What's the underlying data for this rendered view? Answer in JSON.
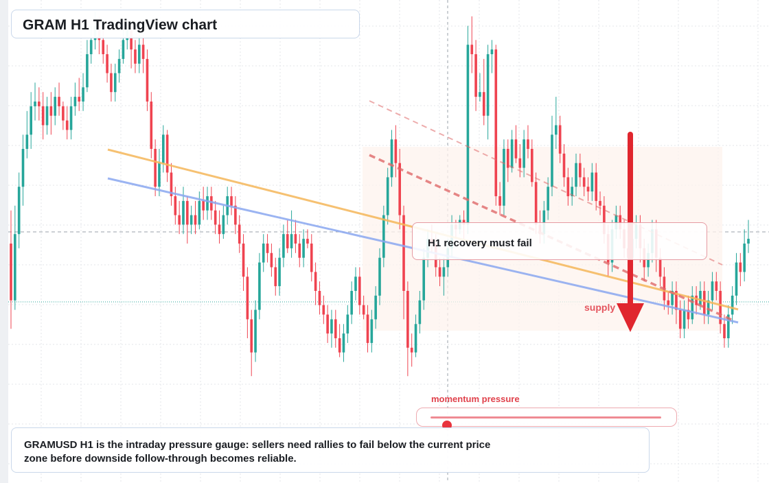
{
  "header": {
    "title": "GRAM H1 TradingView chart"
  },
  "callout": {
    "text": "H1 recovery must fail"
  },
  "annotations": {
    "supply_label": "supply"
  },
  "momentum": {
    "label": "momentum pressure",
    "value_fraction": 0.07
  },
  "footer": {
    "text": "GRAMUSD H1 is the intraday pressure gauge: sellers need rallies to fail below the current price zone before downside follow-through becomes reliable."
  },
  "colors": {
    "bull": "#26a69a",
    "bear": "#ef4350",
    "trendline_orange": "#f5b75a",
    "trendline_blue": "#8aa8f0",
    "resistance_dashed": "#e06a6a",
    "arrow": "#e0262e",
    "supply_zone": "#fdf3ee"
  },
  "chart_data": {
    "type": "candlestick",
    "symbol": "GRAMUSD",
    "timeframe": "H1",
    "grid": true,
    "price_scale_visible": false,
    "y_range_relative": [
      0,
      100
    ],
    "candles": [
      [
        50,
        38,
        57,
        32
      ],
      [
        38,
        52,
        58,
        36
      ],
      [
        52,
        62,
        65,
        49
      ],
      [
        62,
        70,
        73,
        58
      ],
      [
        70,
        73,
        78,
        68
      ],
      [
        73,
        79,
        82,
        70
      ],
      [
        79,
        80,
        84,
        76
      ],
      [
        80,
        79,
        83,
        76
      ],
      [
        79,
        75,
        82,
        72
      ],
      [
        75,
        79,
        81,
        73
      ],
      [
        79,
        77,
        82,
        73
      ],
      [
        77,
        81,
        83,
        75
      ],
      [
        81,
        79,
        84,
        77
      ],
      [
        79,
        76,
        80,
        74
      ],
      [
        76,
        74,
        79,
        72
      ],
      [
        74,
        79,
        81,
        72
      ],
      [
        79,
        81,
        84,
        77
      ],
      [
        81,
        80,
        85,
        78
      ],
      [
        80,
        83,
        86,
        78
      ],
      [
        83,
        90,
        93,
        82
      ],
      [
        90,
        93,
        96,
        88
      ],
      [
        93,
        96,
        99,
        91
      ],
      [
        96,
        93,
        98,
        90
      ],
      [
        93,
        90,
        95,
        88
      ],
      [
        90,
        86,
        92,
        84
      ],
      [
        86,
        82,
        88,
        80
      ],
      [
        82,
        86,
        88,
        80
      ],
      [
        86,
        89,
        91,
        84
      ],
      [
        89,
        93,
        96,
        88
      ],
      [
        93,
        95,
        97,
        91
      ],
      [
        95,
        91,
        96,
        87
      ],
      [
        91,
        88,
        93,
        86
      ],
      [
        88,
        92,
        94,
        86
      ],
      [
        92,
        89,
        94,
        86
      ],
      [
        89,
        80,
        91,
        78
      ],
      [
        80,
        70,
        82,
        68
      ],
      [
        70,
        62,
        72,
        60
      ],
      [
        62,
        67,
        70,
        60
      ],
      [
        67,
        73,
        75,
        65
      ],
      [
        73,
        65,
        74,
        63
      ],
      [
        65,
        60,
        67,
        58
      ],
      [
        60,
        56,
        62,
        54
      ],
      [
        56,
        54,
        59,
        52
      ],
      [
        54,
        59,
        62,
        52
      ],
      [
        59,
        54,
        60,
        50
      ],
      [
        54,
        56,
        58,
        52
      ],
      [
        56,
        54,
        59,
        52
      ],
      [
        54,
        59,
        61,
        53
      ],
      [
        59,
        57,
        62,
        55
      ],
      [
        57,
        60,
        62,
        55
      ],
      [
        60,
        57,
        62,
        55
      ],
      [
        57,
        54,
        59,
        52
      ],
      [
        54,
        52,
        57,
        50
      ],
      [
        52,
        56,
        58,
        51
      ],
      [
        56,
        60,
        62,
        54
      ],
      [
        60,
        58,
        62,
        56
      ],
      [
        58,
        54,
        60,
        52
      ],
      [
        54,
        50,
        56,
        48
      ],
      [
        50,
        43,
        52,
        40
      ],
      [
        43,
        34,
        45,
        30
      ],
      [
        34,
        27,
        36,
        22
      ],
      [
        27,
        36,
        38,
        25
      ],
      [
        36,
        46,
        48,
        34
      ],
      [
        46,
        50,
        52,
        44
      ],
      [
        50,
        48,
        52,
        46
      ],
      [
        48,
        45,
        50,
        43
      ],
      [
        45,
        41,
        47,
        39
      ],
      [
        41,
        47,
        49,
        39
      ],
      [
        47,
        52,
        54,
        45
      ],
      [
        52,
        49,
        55,
        48
      ],
      [
        49,
        52,
        57,
        47
      ],
      [
        52,
        50,
        55,
        48
      ],
      [
        50,
        47,
        52,
        45
      ],
      [
        47,
        51,
        53,
        45
      ],
      [
        51,
        50,
        53,
        49
      ],
      [
        50,
        44,
        52,
        42
      ],
      [
        44,
        40,
        46,
        37
      ],
      [
        40,
        37,
        42,
        35
      ],
      [
        37,
        35,
        39,
        33
      ],
      [
        35,
        31,
        37,
        29
      ],
      [
        31,
        34,
        36,
        28
      ],
      [
        34,
        30,
        36,
        28
      ],
      [
        30,
        27,
        33,
        26
      ],
      [
        27,
        31,
        33,
        25
      ],
      [
        31,
        35,
        37,
        29
      ],
      [
        35,
        40,
        42,
        33
      ],
      [
        40,
        43,
        45,
        38
      ],
      [
        43,
        37,
        45,
        35
      ],
      [
        37,
        35,
        39,
        34
      ],
      [
        35,
        29,
        37,
        27
      ],
      [
        29,
        34,
        36,
        27
      ],
      [
        34,
        39,
        41,
        32
      ],
      [
        39,
        47,
        49,
        37
      ],
      [
        47,
        56,
        58,
        45
      ],
      [
        56,
        64,
        66,
        54
      ],
      [
        64,
        72,
        74,
        62
      ],
      [
        72,
        67,
        75,
        64
      ],
      [
        67,
        56,
        70,
        53
      ],
      [
        56,
        40,
        58,
        34
      ],
      [
        40,
        28,
        42,
        22
      ],
      [
        28,
        27,
        31,
        24
      ],
      [
        27,
        33,
        35,
        26
      ],
      [
        33,
        38,
        40,
        31
      ],
      [
        38,
        47,
        49,
        36
      ],
      [
        47,
        51,
        53,
        45
      ],
      [
        51,
        50,
        54,
        48
      ],
      [
        50,
        45,
        52,
        43
      ],
      [
        45,
        43,
        47,
        41
      ],
      [
        43,
        45,
        47,
        39
      ],
      [
        45,
        49,
        51,
        43
      ],
      [
        49,
        54,
        56,
        47
      ],
      [
        54,
        53,
        55,
        51
      ],
      [
        53,
        55,
        56,
        52
      ],
      [
        55,
        54,
        57,
        51
      ],
      [
        54,
        92,
        96,
        52
      ],
      [
        92,
        90,
        98,
        86
      ],
      [
        90,
        81,
        93,
        78
      ],
      [
        81,
        82,
        86,
        80
      ],
      [
        82,
        77,
        89,
        75
      ],
      [
        77,
        90,
        92,
        72
      ],
      [
        90,
        91,
        93,
        86
      ],
      [
        91,
        60,
        92,
        58
      ],
      [
        60,
        58,
        63,
        56
      ],
      [
        58,
        70,
        72,
        56
      ],
      [
        70,
        66,
        72,
        63
      ],
      [
        66,
        72,
        74,
        65
      ],
      [
        72,
        68,
        75,
        67
      ],
      [
        68,
        66,
        71,
        64
      ],
      [
        66,
        72,
        74,
        64
      ],
      [
        72,
        70,
        75,
        68
      ],
      [
        70,
        63,
        72,
        62
      ],
      [
        63,
        54,
        65,
        52
      ],
      [
        54,
        52,
        57,
        50
      ],
      [
        52,
        57,
        59,
        50
      ],
      [
        57,
        62,
        64,
        55
      ],
      [
        62,
        73,
        77,
        60
      ],
      [
        73,
        75,
        81,
        70
      ],
      [
        75,
        69,
        77,
        67
      ],
      [
        69,
        64,
        71,
        62
      ],
      [
        64,
        60,
        66,
        58
      ],
      [
        60,
        62,
        64,
        58
      ],
      [
        62,
        67,
        69,
        60
      ],
      [
        67,
        64,
        69,
        62
      ],
      [
        64,
        62,
        66,
        60
      ],
      [
        62,
        61,
        64,
        59
      ],
      [
        61,
        65,
        67,
        59
      ],
      [
        65,
        59,
        67,
        57
      ],
      [
        59,
        58,
        61,
        56
      ],
      [
        58,
        52,
        60,
        50
      ],
      [
        52,
        46,
        54,
        43
      ],
      [
        46,
        53,
        55,
        44
      ],
      [
        53,
        56,
        58,
        51
      ],
      [
        56,
        53,
        58,
        51
      ],
      [
        53,
        49,
        55,
        47
      ],
      [
        49,
        47,
        51,
        44
      ],
      [
        47,
        51,
        53,
        45
      ],
      [
        51,
        54,
        56,
        49
      ],
      [
        54,
        49,
        56,
        46
      ],
      [
        49,
        45,
        51,
        42
      ],
      [
        45,
        48,
        50,
        43
      ],
      [
        48,
        53,
        55,
        46
      ],
      [
        53,
        47,
        55,
        44
      ],
      [
        47,
        43,
        49,
        41
      ],
      [
        43,
        38,
        45,
        36
      ],
      [
        38,
        37,
        40,
        35
      ],
      [
        37,
        40,
        42,
        35
      ],
      [
        40,
        36,
        42,
        33
      ],
      [
        36,
        32,
        38,
        30
      ],
      [
        32,
        36,
        38,
        30
      ],
      [
        36,
        34,
        39,
        32
      ],
      [
        34,
        39,
        41,
        33
      ],
      [
        39,
        37,
        41,
        35
      ],
      [
        37,
        40,
        42,
        36
      ],
      [
        40,
        35,
        42,
        33
      ],
      [
        35,
        38,
        40,
        33
      ],
      [
        38,
        42,
        44,
        36
      ],
      [
        42,
        40,
        44,
        38
      ],
      [
        40,
        33,
        42,
        31
      ],
      [
        33,
        30,
        35,
        28
      ],
      [
        30,
        35,
        37,
        28
      ],
      [
        35,
        39,
        41,
        33
      ],
      [
        39,
        46,
        48,
        37
      ],
      [
        46,
        44,
        48,
        41
      ],
      [
        44,
        50,
        53,
        42
      ],
      [
        50,
        51,
        55,
        48
      ]
    ],
    "overlays": [
      {
        "name": "",
        "kind": "trendline",
        "color": "orange"
      },
      {
        "name": "",
        "kind": "trendline",
        "color": "blue"
      },
      {
        "name": "",
        "kind": "dashed resistance",
        "color": "red"
      },
      {
        "name": "",
        "kind": "dashed resistance (faint)",
        "color": "red"
      },
      {
        "name": "",
        "kind": "down arrow",
        "color": "red"
      }
    ]
  }
}
